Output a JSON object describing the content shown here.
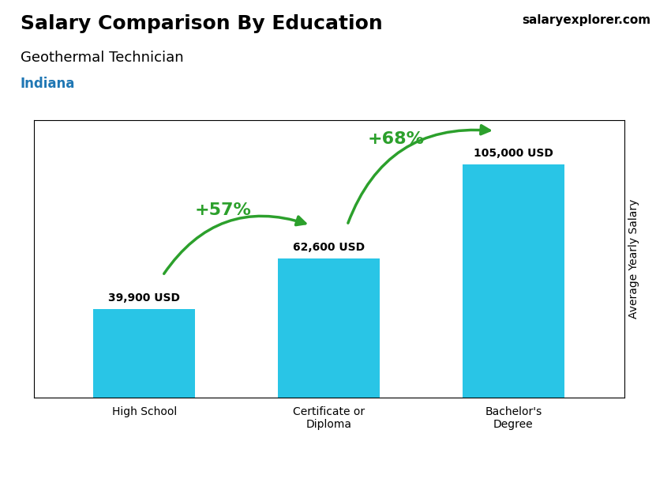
{
  "chart_data": {
    "type": "bar",
    "title": "Salary Comparison By Education",
    "subtitle": "Geothermal Technician",
    "ylabel": "Average Yearly Salary",
    "categories": [
      "High School",
      "Certificate or\nDiploma",
      "Bachelor's\nDegree"
    ],
    "values": [
      39900,
      62600,
      105000
    ],
    "value_labels": [
      "39,900 USD",
      "62,600 USD",
      "105,000 USD"
    ],
    "data_labels": true,
    "color": "#29c5e6",
    "ylim": [
      0,
      125000
    ],
    "yticks": [],
    "tick_labels": "x",
    "grid": false,
    "annotations": [
      {
        "text": "+57%",
        "from": "High School",
        "to": "Certificate or\nDiploma"
      },
      {
        "text": "+68%",
        "from": "Certificate or\nDiploma",
        "to": "Bachelor's\nDegree"
      },
      {
        "text": "Indiana"
      },
      {
        "text": "salaryexplorer.com"
      }
    ]
  }
}
